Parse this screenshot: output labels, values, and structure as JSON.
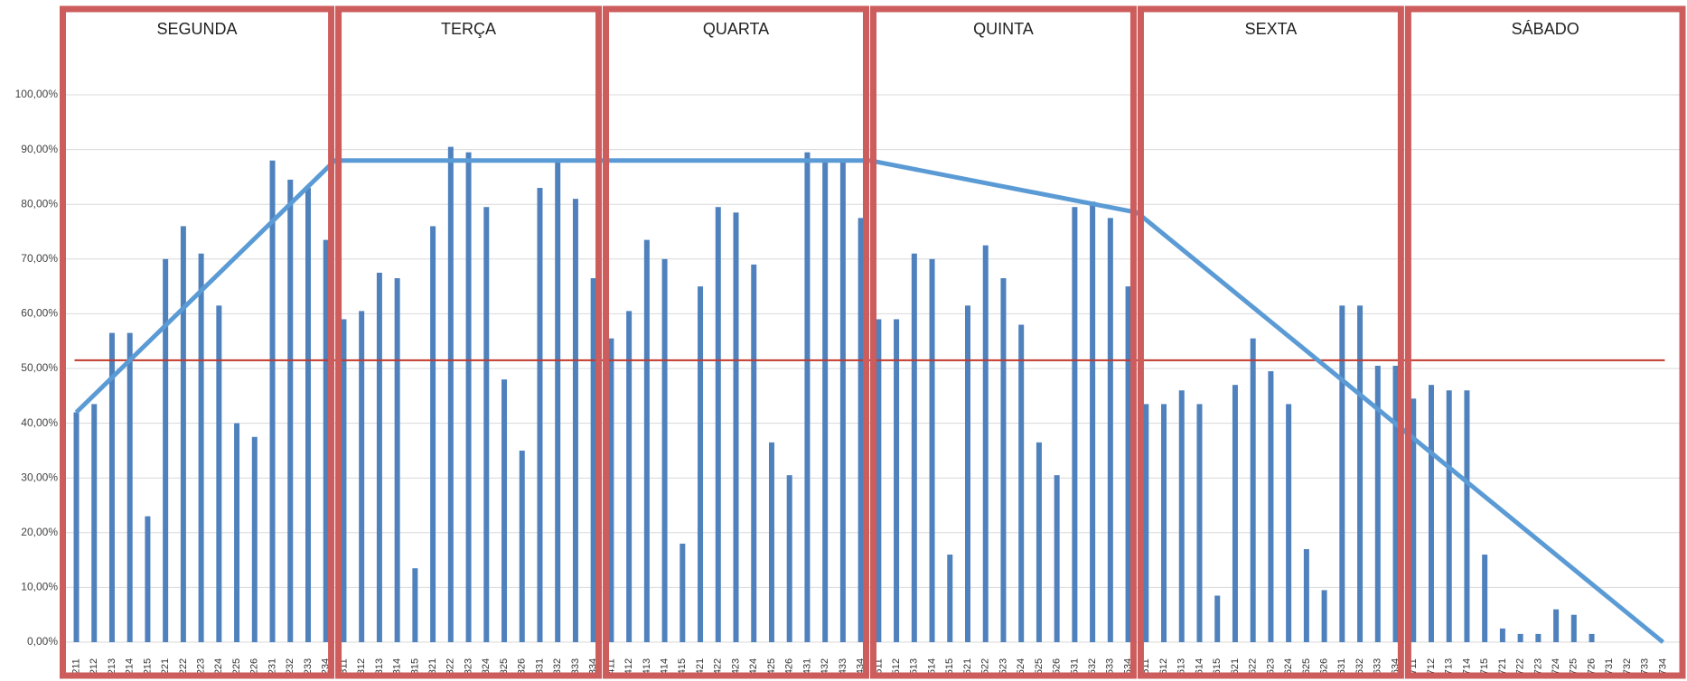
{
  "chart_data": {
    "type": "bar",
    "groups": [
      {
        "label": "SEGUNDA",
        "categories": [
          "211",
          "212",
          "213",
          "214",
          "215",
          "221",
          "222",
          "223",
          "224",
          "225",
          "226",
          "231",
          "232",
          "233",
          "234"
        ],
        "values": [
          42,
          43.5,
          56.5,
          56.5,
          23,
          70,
          76,
          71,
          61.5,
          40,
          37.5,
          88,
          84.5,
          83,
          73.5
        ]
      },
      {
        "label": "TERÇA",
        "categories": [
          "311",
          "312",
          "313",
          "314",
          "315",
          "321",
          "322",
          "323",
          "324",
          "325",
          "326",
          "331",
          "332",
          "333",
          "334"
        ],
        "values": [
          59,
          60.5,
          67.5,
          66.5,
          13.5,
          76,
          90.5,
          89.5,
          79.5,
          48,
          35,
          83,
          88,
          81,
          66.5
        ]
      },
      {
        "label": "QUARTA",
        "categories": [
          "411",
          "412",
          "413",
          "414",
          "415",
          "421",
          "422",
          "423",
          "424",
          "425",
          "426",
          "431",
          "432",
          "433",
          "434"
        ],
        "values": [
          55.5,
          60.5,
          73.5,
          70,
          18,
          65,
          79.5,
          78.5,
          69,
          36.5,
          30.5,
          89.5,
          88,
          88,
          77.5
        ]
      },
      {
        "label": "QUINTA",
        "categories": [
          "511",
          "512",
          "513",
          "514",
          "515",
          "521",
          "522",
          "523",
          "524",
          "525",
          "526",
          "531",
          "532",
          "533",
          "534"
        ],
        "values": [
          59,
          59,
          71,
          70,
          16,
          61.5,
          72.5,
          66.5,
          58,
          36.5,
          30.5,
          79.5,
          80.5,
          77.5,
          65
        ]
      },
      {
        "label": "SEXTA",
        "categories": [
          "611",
          "612",
          "613",
          "614",
          "615",
          "621",
          "622",
          "623",
          "624",
          "625",
          "626",
          "631",
          "632",
          "633",
          "634"
        ],
        "values": [
          43.5,
          43.5,
          46,
          43.5,
          8.5,
          47,
          55.5,
          49.5,
          43.5,
          17,
          9.5,
          61.5,
          61.5,
          50.5,
          50.5
        ]
      },
      {
        "label": "SÁBADO",
        "categories": [
          "711",
          "712",
          "713",
          "714",
          "715",
          "721",
          "722",
          "723",
          "724",
          "725",
          "726",
          "731",
          "732",
          "733",
          "734"
        ],
        "values": [
          44.5,
          47,
          46,
          46,
          16,
          2.5,
          1.5,
          1.5,
          6,
          5,
          1.5,
          0,
          0,
          0,
          0
        ]
      }
    ],
    "color": "#4f81bd",
    "ylim": [
      0,
      100
    ],
    "yticks": [
      {
        "value": 0,
        "label": "0,00%"
      },
      {
        "value": 10,
        "label": "10,00%"
      },
      {
        "value": 20,
        "label": "20,00%"
      },
      {
        "value": 30,
        "label": "30,00%"
      },
      {
        "value": 40,
        "label": "40,00%"
      },
      {
        "value": 50,
        "label": "50,00%"
      },
      {
        "value": 60,
        "label": "60,00%"
      },
      {
        "value": 70,
        "label": "70,00%"
      },
      {
        "value": 80,
        "label": "80,00%"
      },
      {
        "value": 90,
        "label": "90,00%"
      },
      {
        "value": 100,
        "label": "100,00%"
      }
    ],
    "grid": true,
    "target": {
      "value": 51.5,
      "color": "#c0392b"
    },
    "trend": {
      "x": [
        0,
        14.5,
        44.5,
        59.5,
        89
      ],
      "values": [
        42,
        88,
        88,
        78.5,
        0
      ],
      "color": "#5b9bd5"
    },
    "box_color": "#cd5c5c"
  }
}
